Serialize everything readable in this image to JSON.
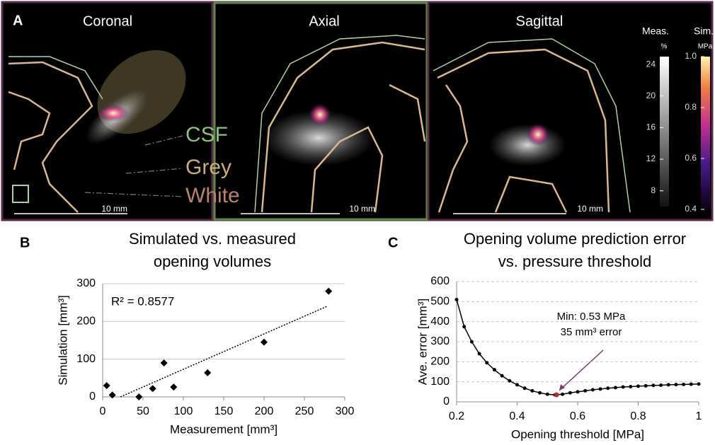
{
  "panel_a": {
    "label": "A",
    "views": [
      "Coronal",
      "Axial",
      "Sagittal"
    ],
    "tissues": [
      "CSF",
      "Grey",
      "White"
    ],
    "scale_bars": [
      "10 mm",
      "10 mm",
      "10 mm"
    ],
    "colorbars": [
      {
        "name": "Meas.",
        "unit": "%",
        "ylim": [
          6,
          25
        ],
        "yticks": [
          24,
          20,
          16,
          12,
          8
        ]
      },
      {
        "name": "Sim.",
        "unit": "MPa",
        "ylim": [
          0.4,
          1.0
        ],
        "yticks": [
          {
            "value": 1,
            "label": "1.0"
          },
          0.8,
          0.6,
          0.4
        ]
      }
    ]
  },
  "chart_data": [
    {
      "type": "scatter",
      "panel_label": "B",
      "title": [
        "Simulated vs. measured",
        "opening volumes"
      ],
      "x_label": "Measurement [mm³]",
      "y_label": "Simulation [mm³]",
      "x": [
        5,
        12,
        45,
        62,
        76,
        88,
        130,
        200,
        280
      ],
      "values": [
        30,
        5,
        0,
        22,
        90,
        26,
        64,
        145,
        280
      ],
      "color": "#000000",
      "trendline": {
        "x": [
          22,
          278
        ],
        "values": [
          0,
          240
        ]
      },
      "annotation": "R² = 0.8577",
      "xlim": [
        0,
        300
      ],
      "ylim": [
        0,
        300
      ],
      "xticks": [
        0,
        50,
        100,
        150,
        200,
        250,
        300
      ],
      "yticks": [
        0,
        100,
        200,
        300
      ],
      "grid": true
    },
    {
      "type": "line",
      "panel_label": "C",
      "title": [
        "Opening volume prediction error",
        "vs. pressure threshold"
      ],
      "x_label": "Opening threshold [MPa]",
      "y_label": "Ave. error [mm³]",
      "x": [
        0.2,
        0.225,
        0.25,
        0.275,
        0.3,
        0.325,
        0.35,
        0.375,
        0.4,
        0.425,
        0.45,
        0.475,
        0.5,
        0.525,
        0.55,
        0.575,
        0.6,
        0.625,
        0.65,
        0.675,
        0.7,
        0.725,
        0.75,
        0.775,
        0.8,
        0.825,
        0.85,
        0.875,
        0.9,
        0.925,
        0.95,
        0.975,
        1.0
      ],
      "values": [
        510,
        375,
        300,
        240,
        195,
        160,
        130,
        105,
        85,
        68,
        55,
        45,
        38,
        35,
        38,
        45,
        50,
        55,
        60,
        64,
        68,
        71,
        74,
        76,
        78,
        80,
        82,
        83,
        85,
        86,
        87,
        88,
        89
      ],
      "color": "#000000",
      "min_point": {
        "x": 0.53,
        "value": 35,
        "color": "#b03030"
      },
      "annotation": [
        "Min: 0.53 MPa",
        "35 mm³ error"
      ],
      "xlim": [
        0.2,
        1
      ],
      "ylim": [
        0,
        600
      ],
      "xticks": [
        0.2,
        0.4,
        0.6,
        0.8,
        1
      ],
      "yticks": [
        0,
        100,
        200,
        300,
        400,
        500,
        600
      ],
      "grid": true
    }
  ]
}
